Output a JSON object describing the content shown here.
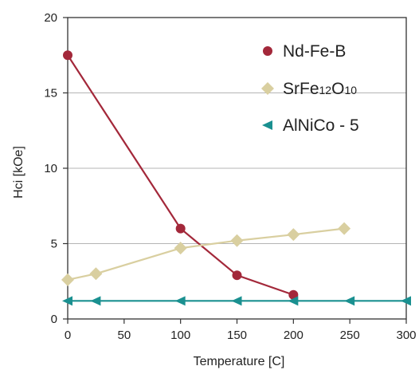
{
  "chart_data": {
    "type": "line",
    "title": "",
    "xlabel": "Temperature [C]",
    "ylabel": "Hci [kOe]",
    "xlim": [
      0,
      300
    ],
    "ylim": [
      0,
      20
    ],
    "xticks": [
      0,
      50,
      100,
      150,
      200,
      250,
      300
    ],
    "yticks": [
      0,
      5,
      10,
      15,
      20
    ],
    "grid": "horizontal",
    "legend_position": "top-right",
    "series": [
      {
        "name": "Nd-Fe-B",
        "name_parts": [
          {
            "text": "Nd-Fe-B",
            "sub": false
          }
        ],
        "marker": "circle",
        "color": "#a3283a",
        "points": [
          [
            0,
            17.5
          ],
          [
            100,
            6.0
          ],
          [
            150,
            2.9
          ],
          [
            200,
            1.6
          ]
        ]
      },
      {
        "name": "SrFe12O10",
        "name_parts": [
          {
            "text": "SrFe",
            "sub": false
          },
          {
            "text": "12",
            "sub": true
          },
          {
            "text": "O",
            "sub": false
          },
          {
            "text": "10",
            "sub": true
          }
        ],
        "marker": "diamond",
        "color": "#d9cfa0",
        "points": [
          [
            0,
            2.6
          ],
          [
            25,
            3.0
          ],
          [
            100,
            4.7
          ],
          [
            150,
            5.2
          ],
          [
            200,
            5.6
          ],
          [
            245,
            6.0
          ]
        ]
      },
      {
        "name": "AlNiCo - 5",
        "name_parts": [
          {
            "text": "AlNiCo - 5",
            "sub": false
          }
        ],
        "marker": "triangle-left",
        "color": "#1a9090",
        "points": [
          [
            0,
            1.2
          ],
          [
            25,
            1.2
          ],
          [
            100,
            1.2
          ],
          [
            150,
            1.2
          ],
          [
            200,
            1.2
          ],
          [
            250,
            1.2
          ],
          [
            300,
            1.2
          ]
        ]
      }
    ]
  }
}
